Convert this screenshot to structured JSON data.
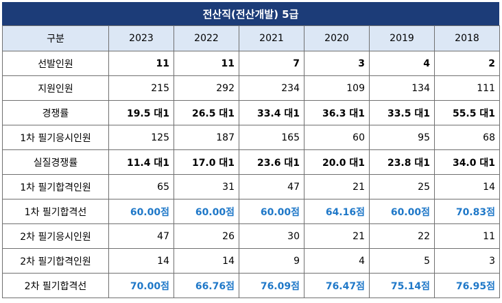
{
  "title": "전산직(전산개발) 5급",
  "header": {
    "label": "구분",
    "years": [
      "2023",
      "2022",
      "2021",
      "2020",
      "2019",
      "2018"
    ]
  },
  "rows": [
    {
      "label": "선발인원",
      "style": "bold",
      "values": [
        "11",
        "11",
        "7",
        "3",
        "4",
        "2"
      ]
    },
    {
      "label": "지원인원",
      "style": "normal",
      "values": [
        "215",
        "292",
        "234",
        "109",
        "134",
        "111"
      ]
    },
    {
      "label": "경쟁률",
      "style": "bold",
      "values": [
        "19.5 대1",
        "26.5 대1",
        "33.4 대1",
        "36.3 대1",
        "33.5 대1",
        "55.5 대1"
      ]
    },
    {
      "label": "1차 필기응시인원",
      "style": "normal",
      "values": [
        "125",
        "187",
        "165",
        "60",
        "95",
        "68"
      ]
    },
    {
      "label": "실질경쟁률",
      "style": "bold",
      "values": [
        "11.4 대1",
        "17.0 대1",
        "23.6 대1",
        "20.0 대1",
        "23.8 대1",
        "34.0 대1"
      ]
    },
    {
      "label": "1차 필기합격인원",
      "style": "normal",
      "values": [
        "65",
        "31",
        "47",
        "21",
        "25",
        "14"
      ]
    },
    {
      "label": "1차 필기합격선",
      "style": "score",
      "values": [
        "60.00점",
        "60.00점",
        "60.00점",
        "64.16점",
        "60.00점",
        "70.83점"
      ]
    },
    {
      "label": "2차 필기응시인원",
      "style": "normal",
      "values": [
        "47",
        "26",
        "30",
        "21",
        "22",
        "11"
      ]
    },
    {
      "label": "2차 필기합격인원",
      "style": "normal",
      "values": [
        "14",
        "14",
        "9",
        "4",
        "5",
        "3"
      ]
    },
    {
      "label": "2차 필기합격선",
      "style": "score",
      "values": [
        "70.00점",
        "66.76점",
        "76.09점",
        "76.47점",
        "75.14점",
        "76.95점"
      ]
    }
  ],
  "colors": {
    "title_bg": "#1c3c78",
    "header_bg": "#dce7f5",
    "score_text": "#1f78c8",
    "border": "#6f6f6f"
  }
}
